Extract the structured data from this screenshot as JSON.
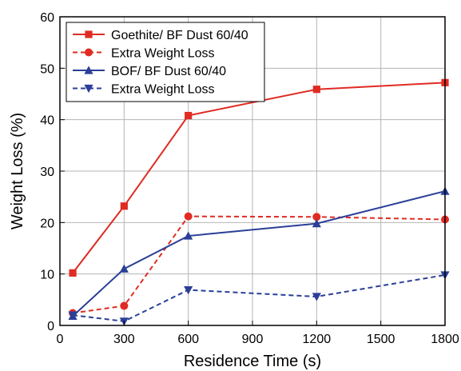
{
  "chart_data": {
    "type": "line",
    "xlabel": "Residence Time (s)",
    "ylabel": "Weight Loss (%)",
    "xlim": [
      0,
      1800
    ],
    "ylim": [
      0,
      60
    ],
    "xticks": [
      0,
      300,
      600,
      900,
      1200,
      1500,
      1800
    ],
    "yticks": [
      0,
      10,
      20,
      30,
      40,
      50,
      60
    ],
    "grid": true,
    "legend_position": "top-left",
    "series": [
      {
        "name": "Goethite/ BF Dust 60/40",
        "color": "#e02b23",
        "line": "solid",
        "marker": "square",
        "x": [
          60,
          300,
          600,
          1200,
          1800
        ],
        "y": [
          10.2,
          23.2,
          40.8,
          45.9,
          47.2
        ]
      },
      {
        "name": "Extra Weight Loss",
        "color": "#e02b23",
        "line": "dashed",
        "marker": "circle",
        "x": [
          60,
          300,
          600,
          1200,
          1800
        ],
        "y": [
          2.4,
          3.8,
          21.2,
          21.1,
          20.6
        ]
      },
      {
        "name": "BOF/ BF Dust 60/40",
        "color": "#2a3f97",
        "line": "solid",
        "marker": "triangle-up",
        "x": [
          60,
          300,
          600,
          1200,
          1800
        ],
        "y": [
          1.8,
          11.0,
          17.4,
          19.8,
          26.1
        ]
      },
      {
        "name": "Extra Weight Loss",
        "color": "#2a3f97",
        "line": "dashed",
        "marker": "triangle-down",
        "x": [
          60,
          300,
          600,
          1200,
          1800
        ],
        "y": [
          2.0,
          0.8,
          6.9,
          5.6,
          9.8
        ]
      }
    ]
  }
}
